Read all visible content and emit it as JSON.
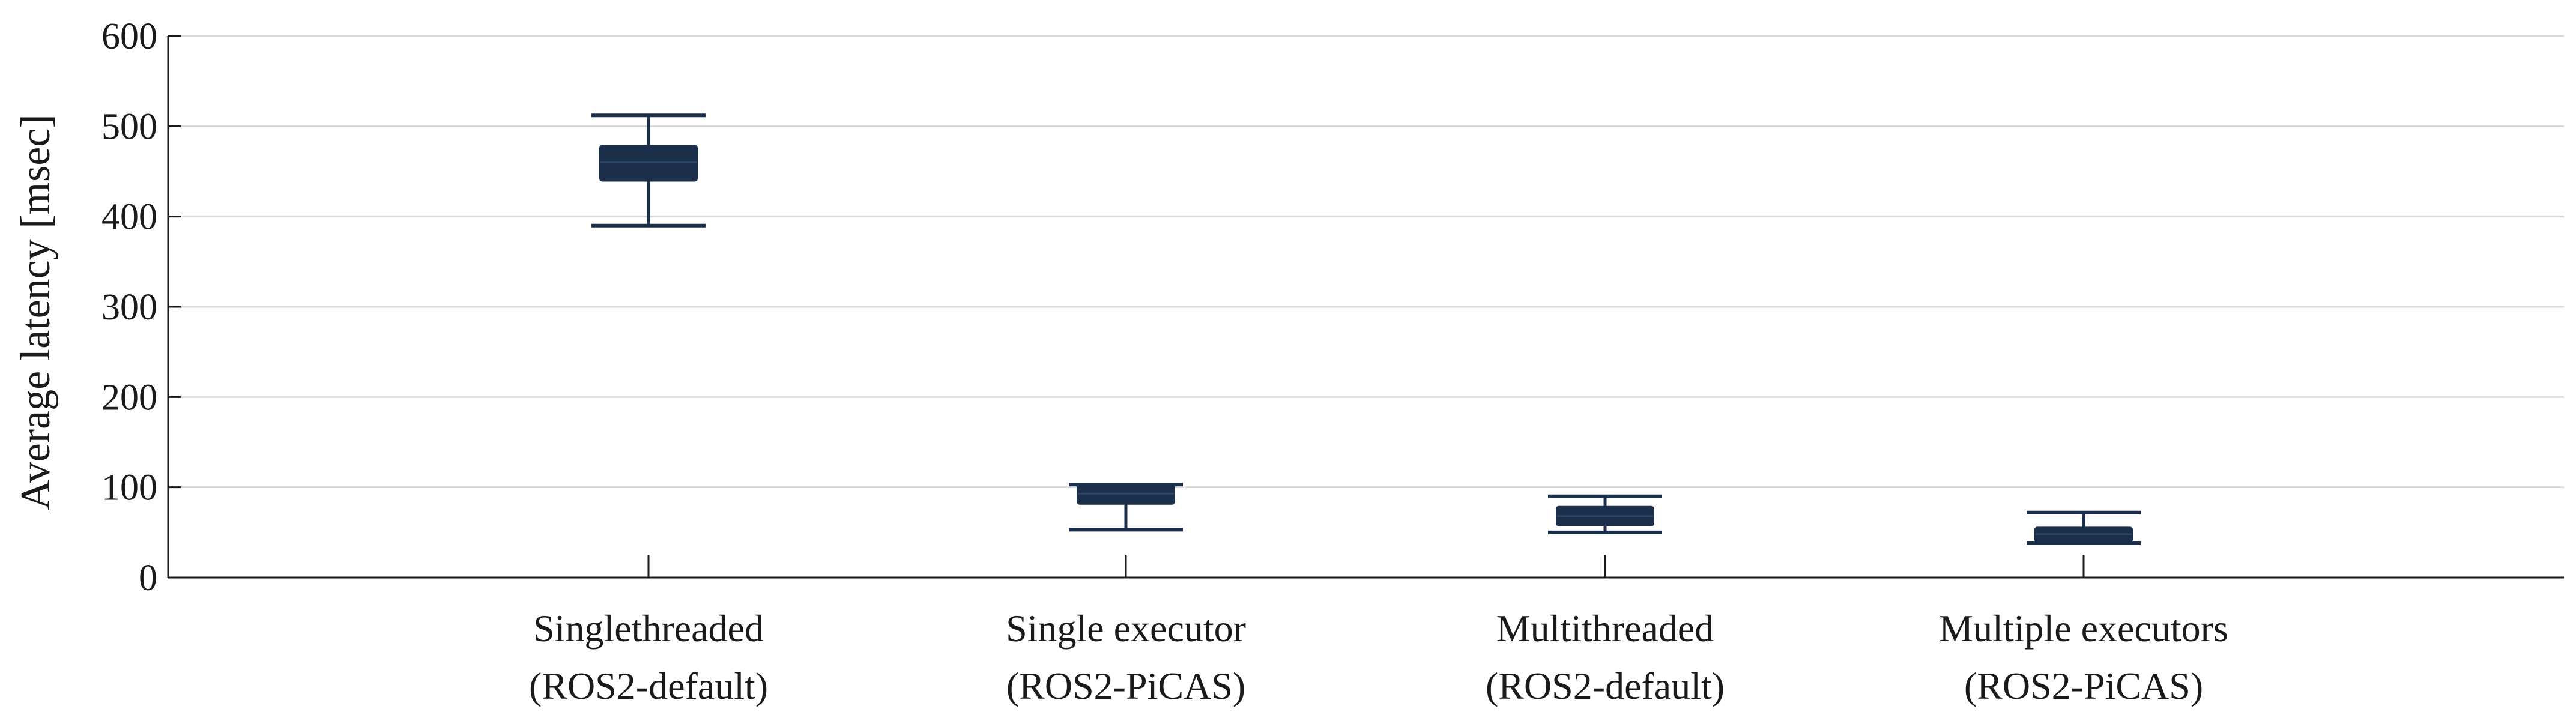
{
  "chart_data": {
    "type": "box",
    "title": "",
    "xlabel": "",
    "ylabel": "Average latency [msec]",
    "ylim": [
      0,
      600
    ],
    "yticks": [
      0,
      100,
      200,
      300,
      400,
      500,
      600
    ],
    "grid": true,
    "categories": [
      {
        "line1": "Singlethreaded",
        "line2": "(ROS2-default)"
      },
      {
        "line1": "Single executor",
        "line2": "(ROS2-PiCAS)"
      },
      {
        "line1": "Multithreaded",
        "line2": "(ROS2-default)"
      },
      {
        "line1": "Multiple executors",
        "line2": "(ROS2-PiCAS)"
      }
    ],
    "boxes": [
      {
        "whisker_low": 390,
        "q1": 440,
        "median": 460,
        "q3": 478,
        "whisker_high": 512
      },
      {
        "whisker_low": 53,
        "q1": 82,
        "median": 93,
        "q3": 103,
        "whisker_high": 103
      },
      {
        "whisker_low": 50,
        "q1": 58,
        "median": 68,
        "q3": 78,
        "whisker_high": 90
      },
      {
        "whisker_low": 38,
        "q1": 40,
        "median": 48,
        "q3": 55,
        "whisker_high": 72
      }
    ],
    "colors": {
      "box": "#1b2f4a",
      "axis": "#1a1a1a",
      "grid": "#d9d9d9"
    }
  }
}
